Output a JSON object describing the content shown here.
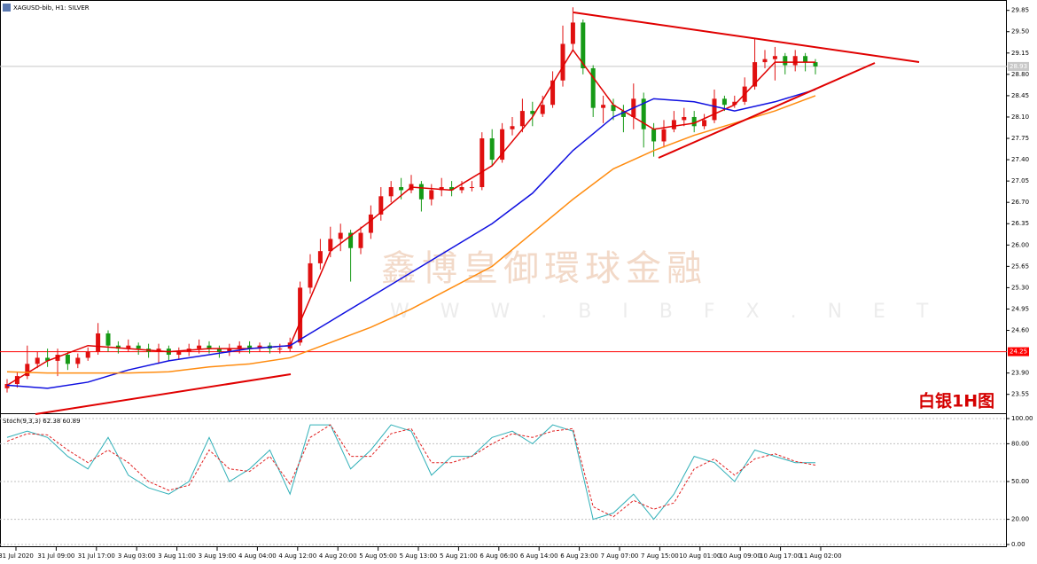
{
  "window": {
    "title": "XAGUSD-bib, H1: SILVER"
  },
  "watermark": {
    "name": "鑫博皇御環球金融",
    "url": "W W W . B I B F X . N E T"
  },
  "label": "白银1H图",
  "chart_data": [
    {
      "type": "candlestick",
      "up_color": "#e01010",
      "down_color": "#169a16",
      "ylim": [
        23.24,
        30.02
      ],
      "yticks": [
        29.85,
        {
          "value": 29.5,
          "label": "29.50"
        },
        29.15,
        {
          "value": 28.8,
          "label": "28.80"
        },
        28.45,
        {
          "value": 28.1,
          "label": "28.10"
        },
        27.75,
        {
          "value": 27.4,
          "label": "27.40"
        },
        27.05,
        {
          "value": 26.7,
          "label": "26.70"
        },
        26.35,
        {
          "value": 26.0,
          "label": "26.00"
        },
        25.65,
        {
          "value": 25.3,
          "label": "25.30"
        },
        24.95,
        {
          "value": 24.6,
          "label": "24.60"
        },
        {
          "value": 23.9,
          "label": "23.90"
        },
        23.55
      ],
      "xtick_labels": [
        "31 Jul 2020",
        "31 Jul 09:00",
        "31 Jul 17:00",
        "3 Aug 03:00",
        "3 Aug 11:00",
        "3 Aug 19:00",
        "4 Aug 04:00",
        "4 Aug 12:00",
        "4 Aug 20:00",
        "5 Aug 05:00",
        "5 Aug 13:00",
        "5 Aug 21:00",
        "6 Aug 06:00",
        "6 Aug 14:00",
        "6 Aug 23:00",
        "7 Aug 07:00",
        "7 Aug 15:00",
        "10 Aug 01:00",
        "10 Aug 09:00",
        "10 Aug 17:00",
        "11 Aug 02:00"
      ],
      "hlines": [
        {
          "value": 24.25,
          "color": "#ff0000"
        },
        {
          "value": 28.93,
          "color": "#c8c8c8"
        }
      ],
      "candles": {
        "open": [
          23.65,
          23.72,
          23.85,
          24.05,
          24.15,
          24.1,
          24.2,
          24.05,
          24.15,
          24.25,
          24.55,
          24.35,
          24.3,
          24.35,
          24.3,
          24.25,
          24.3,
          24.2,
          24.25,
          24.3,
          24.35,
          24.3,
          24.25,
          24.3,
          24.35,
          24.3,
          24.35,
          24.3,
          24.3,
          24.4,
          25.3,
          25.7,
          25.9,
          26.1,
          26.2,
          25.95,
          26.2,
          26.5,
          26.8,
          26.95,
          26.9,
          27.0,
          26.75,
          26.9,
          26.95,
          26.9,
          26.95,
          26.95,
          27.75,
          27.4,
          27.9,
          27.95,
          28.2,
          28.15,
          28.3,
          28.7,
          29.3,
          29.65,
          28.9,
          28.25,
          28.3,
          28.2,
          28.1,
          28.4,
          27.9,
          27.7,
          27.9,
          28.05,
          28.1,
          27.95,
          28.05,
          28.4,
          28.3,
          28.35,
          28.6,
          29.0,
          29.05,
          29.1,
          28.95,
          29.1,
          29.0
        ],
        "high": [
          23.8,
          23.92,
          24.35,
          24.25,
          24.3,
          24.3,
          24.25,
          24.22,
          24.32,
          24.72,
          24.6,
          24.42,
          24.45,
          24.4,
          24.38,
          24.38,
          24.35,
          24.32,
          24.38,
          24.45,
          24.42,
          24.35,
          24.38,
          24.42,
          24.42,
          24.4,
          24.4,
          24.38,
          24.48,
          25.4,
          25.85,
          26.1,
          26.3,
          26.35,
          26.25,
          26.3,
          26.65,
          26.95,
          27.05,
          27.1,
          27.15,
          27.05,
          27.0,
          27.1,
          27.05,
          27.05,
          27.05,
          27.85,
          27.9,
          28.0,
          28.1,
          28.4,
          28.35,
          28.45,
          28.85,
          29.6,
          29.9,
          29.7,
          28.95,
          28.45,
          28.4,
          28.3,
          28.65,
          28.5,
          28.0,
          28.05,
          28.2,
          28.25,
          28.2,
          28.15,
          28.55,
          28.45,
          28.45,
          28.75,
          29.4,
          29.2,
          29.25,
          29.15,
          29.2,
          29.15,
          29.05
        ],
        "low": [
          23.58,
          23.66,
          23.8,
          23.98,
          24.0,
          23.85,
          23.95,
          23.98,
          24.1,
          24.2,
          24.25,
          24.22,
          24.25,
          24.2,
          24.15,
          24.05,
          24.1,
          24.12,
          24.18,
          24.22,
          24.22,
          24.15,
          24.18,
          24.22,
          24.22,
          24.25,
          24.22,
          24.22,
          24.25,
          24.35,
          25.2,
          25.6,
          25.8,
          25.9,
          25.4,
          25.85,
          26.1,
          26.4,
          26.7,
          26.75,
          26.85,
          26.55,
          26.65,
          26.8,
          26.8,
          26.85,
          26.88,
          26.9,
          27.3,
          27.35,
          27.8,
          27.85,
          27.95,
          28.1,
          28.25,
          28.6,
          29.2,
          28.8,
          28.1,
          28.0,
          28.05,
          27.85,
          27.9,
          27.6,
          27.45,
          27.6,
          27.85,
          27.95,
          27.85,
          27.9,
          28.0,
          28.2,
          28.25,
          28.3,
          28.55,
          28.9,
          28.7,
          28.8,
          28.85,
          28.85,
          28.8
        ],
        "close": [
          23.72,
          23.85,
          24.05,
          24.15,
          24.1,
          24.2,
          24.05,
          24.15,
          24.25,
          24.55,
          24.35,
          24.3,
          24.35,
          24.3,
          24.25,
          24.3,
          24.2,
          24.25,
          24.3,
          24.35,
          24.3,
          24.25,
          24.3,
          24.35,
          24.3,
          24.35,
          24.3,
          24.3,
          24.4,
          25.3,
          25.7,
          25.9,
          26.1,
          26.2,
          25.95,
          26.2,
          26.5,
          26.8,
          26.95,
          26.9,
          27.0,
          26.75,
          26.9,
          26.95,
          26.9,
          26.95,
          26.95,
          27.75,
          27.4,
          27.9,
          27.95,
          28.2,
          28.15,
          28.3,
          28.7,
          29.3,
          29.65,
          28.9,
          28.25,
          28.3,
          28.2,
          28.1,
          28.4,
          27.9,
          27.7,
          27.9,
          28.05,
          28.1,
          27.95,
          28.05,
          28.4,
          28.3,
          28.35,
          28.6,
          29.0,
          29.05,
          29.1,
          28.95,
          29.1,
          29.0,
          28.93
        ]
      },
      "overlays": [
        {
          "color": "#e00000",
          "x": [
            0,
            4,
            8,
            12,
            16,
            20,
            24,
            28,
            32,
            36,
            40,
            44,
            48,
            52,
            56,
            60,
            64,
            68,
            72,
            76,
            80
          ],
          "values": [
            23.7,
            24.1,
            24.35,
            24.3,
            24.25,
            24.3,
            24.3,
            24.35,
            25.9,
            26.4,
            26.95,
            26.9,
            27.3,
            28.1,
            29.2,
            28.3,
            27.9,
            28.0,
            28.3,
            29.0,
            29.0
          ]
        },
        {
          "color": "#1010e0",
          "x": [
            0,
            4,
            8,
            12,
            16,
            20,
            24,
            28,
            32,
            36,
            40,
            44,
            48,
            52,
            56,
            60,
            64,
            68,
            72,
            76,
            80
          ],
          "values": [
            23.7,
            23.65,
            23.75,
            23.95,
            24.1,
            24.2,
            24.3,
            24.35,
            24.75,
            25.15,
            25.55,
            25.95,
            26.35,
            26.85,
            27.55,
            28.1,
            28.4,
            28.35,
            28.2,
            28.35,
            28.55
          ]
        },
        {
          "color": "#ff8c10",
          "x": [
            0,
            4,
            8,
            12,
            16,
            20,
            24,
            28,
            32,
            36,
            40,
            44,
            48,
            52,
            56,
            60,
            64,
            68,
            72,
            76,
            80
          ],
          "values": [
            23.92,
            23.9,
            23.9,
            23.9,
            23.92,
            24.0,
            24.05,
            24.15,
            24.4,
            24.65,
            24.95,
            25.3,
            25.65,
            26.2,
            26.75,
            27.25,
            27.55,
            27.8,
            28.0,
            28.2,
            28.45
          ]
        }
      ]
    },
    {
      "type": "line",
      "title": "Stoch(9,3,3) 62.38 60.89",
      "ylim": [
        -2.1,
        103.5
      ],
      "yticks": [
        {
          "value": 100,
          "label": "100.00"
        },
        {
          "value": 80,
          "label": "80.00"
        },
        {
          "value": 50,
          "label": "50.00"
        },
        {
          "value": 20,
          "label": "20.00"
        },
        {
          "value": 0,
          "label": "0.00"
        }
      ],
      "grid": true,
      "series": [
        {
          "color": "#30b0b8",
          "x": [
            0,
            2,
            4,
            6,
            8,
            10,
            12,
            14,
            16,
            18,
            20,
            22,
            24,
            26,
            28,
            30,
            32,
            34,
            36,
            38,
            40,
            42,
            44,
            46,
            48,
            50,
            52,
            54,
            56,
            58,
            60,
            62,
            64,
            66,
            68,
            70,
            72,
            74,
            76,
            78,
            80
          ],
          "values": [
            85,
            90,
            85,
            70,
            60,
            85,
            55,
            45,
            40,
            50,
            85,
            50,
            60,
            75,
            40,
            95,
            95,
            60,
            75,
            95,
            90,
            55,
            70,
            70,
            85,
            90,
            80,
            95,
            90,
            20,
            25,
            40,
            20,
            40,
            70,
            65,
            50,
            75,
            70,
            65,
            65
          ]
        },
        {
          "color": "#e02020",
          "dashed": true,
          "x": [
            0,
            2,
            4,
            6,
            8,
            10,
            12,
            14,
            16,
            18,
            20,
            22,
            24,
            26,
            28,
            30,
            32,
            34,
            36,
            38,
            40,
            42,
            44,
            46,
            48,
            50,
            52,
            54,
            56,
            58,
            60,
            62,
            64,
            66,
            68,
            70,
            72,
            74,
            76,
            78,
            80
          ],
          "values": [
            82,
            88,
            87,
            75,
            65,
            75,
            65,
            50,
            43,
            47,
            75,
            60,
            58,
            70,
            48,
            85,
            95,
            70,
            70,
            88,
            92,
            65,
            65,
            70,
            80,
            88,
            85,
            90,
            92,
            30,
            22,
            35,
            28,
            33,
            60,
            68,
            55,
            68,
            72,
            66,
            63
          ]
        }
      ]
    }
  ]
}
